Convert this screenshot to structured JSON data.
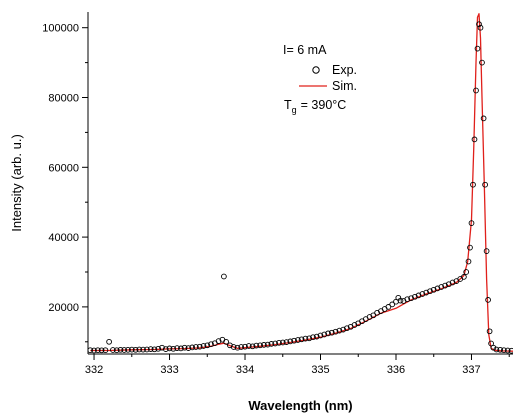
{
  "chart_data": {
    "type": "scatter",
    "title": "",
    "xlabel": "Wavelength (nm)",
    "ylabel": "Intensity (arb. u.)",
    "xlim": [
      331.92,
      337.55
    ],
    "ylim": [
      6500,
      104500
    ],
    "x_ticks": [
      332,
      333,
      334,
      335,
      336,
      337
    ],
    "y_ticks": [
      20000,
      40000,
      60000,
      80000,
      100000
    ],
    "x_tick_labels": [
      "332",
      "333",
      "334",
      "335",
      "336",
      "337"
    ],
    "y_tick_labels": [
      "20000",
      "40000",
      "60000",
      "80000",
      "100000"
    ],
    "grid": false,
    "annotations": {
      "current": "I= 6 mA",
      "temperature_prefix": "T",
      "temperature_subscript": "g",
      "temperature_value": "= 390°C"
    },
    "legend": {
      "placement": "top-center",
      "entries": [
        {
          "label": "Exp.",
          "marker": "open-circle",
          "color": "#000000"
        },
        {
          "label": "Sim.",
          "marker": "line",
          "color": "#e0201b"
        }
      ]
    },
    "series": [
      {
        "name": "Exp.",
        "style": "markers",
        "color": "#000000",
        "points": [
          [
            331.95,
            7600
          ],
          [
            332.0,
            7500
          ],
          [
            332.05,
            7600
          ],
          [
            332.1,
            7550
          ],
          [
            332.15,
            7600
          ],
          [
            332.2,
            10000
          ],
          [
            332.25,
            7650
          ],
          [
            332.3,
            7600
          ],
          [
            332.35,
            7700
          ],
          [
            332.4,
            7650
          ],
          [
            332.45,
            7700
          ],
          [
            332.5,
            7750
          ],
          [
            332.55,
            7700
          ],
          [
            332.6,
            7800
          ],
          [
            332.65,
            7750
          ],
          [
            332.7,
            7800
          ],
          [
            332.75,
            7900
          ],
          [
            332.8,
            7850
          ],
          [
            332.85,
            8000
          ],
          [
            332.9,
            8300
          ],
          [
            332.95,
            7900
          ],
          [
            333.0,
            8100
          ],
          [
            333.05,
            8000
          ],
          [
            333.1,
            8200
          ],
          [
            333.15,
            8100
          ],
          [
            333.2,
            8300
          ],
          [
            333.25,
            8200
          ],
          [
            333.3,
            8400
          ],
          [
            333.35,
            8500
          ],
          [
            333.4,
            8600
          ],
          [
            333.45,
            8800
          ],
          [
            333.5,
            9000
          ],
          [
            333.55,
            9300
          ],
          [
            333.6,
            9600
          ],
          [
            333.65,
            10200
          ],
          [
            333.7,
            10600
          ],
          [
            333.75,
            10000
          ],
          [
            333.8,
            9000
          ],
          [
            333.85,
            8500
          ],
          [
            333.9,
            8300
          ],
          [
            333.72,
            28700
          ],
          [
            333.95,
            8500
          ],
          [
            334.0,
            8600
          ],
          [
            334.05,
            8800
          ],
          [
            334.1,
            8700
          ],
          [
            334.15,
            8900
          ],
          [
            334.2,
            9000
          ],
          [
            334.25,
            9100
          ],
          [
            334.3,
            9200
          ],
          [
            334.35,
            9400
          ],
          [
            334.4,
            9500
          ],
          [
            334.45,
            9700
          ],
          [
            334.5,
            9800
          ],
          [
            334.55,
            9900
          ],
          [
            334.6,
            10100
          ],
          [
            334.65,
            10300
          ],
          [
            334.7,
            10500
          ],
          [
            334.75,
            10700
          ],
          [
            334.8,
            10900
          ],
          [
            334.85,
            11000
          ],
          [
            334.9,
            11300
          ],
          [
            334.95,
            11500
          ],
          [
            335.0,
            11800
          ],
          [
            335.05,
            12100
          ],
          [
            335.1,
            12400
          ],
          [
            335.15,
            12600
          ],
          [
            335.2,
            12900
          ],
          [
            335.25,
            13200
          ],
          [
            335.3,
            13500
          ],
          [
            335.35,
            13900
          ],
          [
            335.4,
            14300
          ],
          [
            335.45,
            14800
          ],
          [
            335.5,
            15300
          ],
          [
            335.55,
            15900
          ],
          [
            335.6,
            16500
          ],
          [
            335.65,
            17100
          ],
          [
            335.7,
            17600
          ],
          [
            335.75,
            18300
          ],
          [
            335.8,
            18800
          ],
          [
            335.85,
            19400
          ],
          [
            335.9,
            20000
          ],
          [
            335.95,
            20700
          ],
          [
            336.0,
            21500
          ],
          [
            336.03,
            22600
          ],
          [
            336.06,
            21800
          ],
          [
            336.1,
            21700
          ],
          [
            336.15,
            22200
          ],
          [
            336.2,
            22500
          ],
          [
            336.25,
            22900
          ],
          [
            336.3,
            23300
          ],
          [
            336.35,
            23700
          ],
          [
            336.4,
            24100
          ],
          [
            336.45,
            24500
          ],
          [
            336.5,
            24900
          ],
          [
            336.55,
            25300
          ],
          [
            336.6,
            25700
          ],
          [
            336.65,
            26100
          ],
          [
            336.7,
            26500
          ],
          [
            336.75,
            27000
          ],
          [
            336.8,
            27400
          ],
          [
            336.85,
            28000
          ],
          [
            336.9,
            28600
          ],
          [
            336.93,
            30000
          ],
          [
            336.96,
            33000
          ],
          [
            336.98,
            37000
          ],
          [
            337.0,
            44000
          ],
          [
            337.02,
            55000
          ],
          [
            337.04,
            68000
          ],
          [
            337.06,
            82000
          ],
          [
            337.08,
            94000
          ],
          [
            337.1,
            101000
          ],
          [
            337.12,
            100000
          ],
          [
            337.14,
            90000
          ],
          [
            337.16,
            74000
          ],
          [
            337.18,
            55000
          ],
          [
            337.2,
            36000
          ],
          [
            337.22,
            22000
          ],
          [
            337.24,
            13000
          ],
          [
            337.26,
            9500
          ],
          [
            337.29,
            8300
          ],
          [
            337.33,
            7800
          ],
          [
            337.38,
            7700
          ],
          [
            337.43,
            7600
          ],
          [
            337.48,
            7500
          ],
          [
            337.53,
            7450
          ]
        ]
      },
      {
        "name": "Sim.",
        "style": "line",
        "color": "#e0201b",
        "points": [
          [
            331.95,
            7500
          ],
          [
            332.2,
            7500
          ],
          [
            332.5,
            7700
          ],
          [
            332.8,
            7800
          ],
          [
            333.0,
            7950
          ],
          [
            333.2,
            8050
          ],
          [
            333.4,
            8250
          ],
          [
            333.55,
            8700
          ],
          [
            333.65,
            9300
          ],
          [
            333.72,
            9600
          ],
          [
            333.8,
            8900
          ],
          [
            333.9,
            8100
          ],
          [
            334.0,
            8300
          ],
          [
            334.2,
            8700
          ],
          [
            334.4,
            9200
          ],
          [
            334.6,
            9800
          ],
          [
            334.8,
            10500
          ],
          [
            335.0,
            11300
          ],
          [
            335.2,
            12500
          ],
          [
            335.4,
            13800
          ],
          [
            335.6,
            15900
          ],
          [
            335.8,
            18200
          ],
          [
            336.0,
            19600
          ],
          [
            336.1,
            20800
          ],
          [
            336.2,
            22000
          ],
          [
            336.4,
            23700
          ],
          [
            336.6,
            25200
          ],
          [
            336.8,
            27000
          ],
          [
            336.9,
            29000
          ],
          [
            336.95,
            33000
          ],
          [
            337.0,
            45000
          ],
          [
            337.03,
            65000
          ],
          [
            337.06,
            90000
          ],
          [
            337.08,
            103000
          ],
          [
            337.1,
            104000
          ],
          [
            337.12,
            97000
          ],
          [
            337.14,
            80000
          ],
          [
            337.17,
            55000
          ],
          [
            337.2,
            28000
          ],
          [
            337.23,
            12000
          ],
          [
            337.26,
            8200
          ],
          [
            337.3,
            7600
          ],
          [
            337.4,
            7400
          ],
          [
            337.55,
            7300
          ]
        ]
      }
    ]
  }
}
